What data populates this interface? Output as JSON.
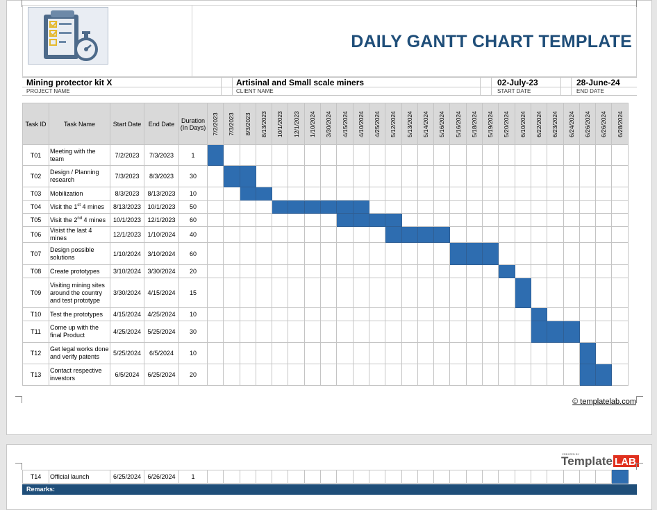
{
  "header": {
    "title": "DAILY GANTT CHART TEMPLATE",
    "logo_icon": "checklist-stopwatch-icon"
  },
  "project": {
    "name": "Mining protector kit X",
    "name_label": "PROJECT NAME",
    "client": "Artisinal and Small scale miners",
    "client_label": "CLIENT NAME",
    "start": "02-July-23",
    "start_label": "START DATE",
    "end": "28-June-24",
    "end_label": "END DATE"
  },
  "columns": {
    "task_id": "Task ID",
    "task_name": "Task Name",
    "start_date": "Start Date",
    "end_date": "End Date",
    "duration": "Duration (In Days)"
  },
  "timeline_dates": [
    "7/2/2023",
    "7/3/2023",
    "8/3/2023",
    "8/13/2023",
    "10/1/2023",
    "12/1/2023",
    "1/10/2024",
    "3/30/2024",
    "4/15/2024",
    "4/10/2024",
    "4/25/2024",
    "5/12/2024",
    "5/13/2024",
    "5/14/2024",
    "5/16/2024",
    "5/16/2024",
    "5/18/2024",
    "5/19/2024",
    "5/20/2024",
    "6/10/2024",
    "6/22/2024",
    "6/23/2024",
    "6/24/2024",
    "6/26/2024",
    "6/26/2024",
    "6/28/2024"
  ],
  "tasks": [
    {
      "id": "T01",
      "name": "Meeting with the\nteam",
      "start": "7/2/2023",
      "end": "7/3/2023",
      "duration": "1",
      "bar": [
        1,
        1
      ]
    },
    {
      "id": "T02",
      "name": "Design / Planning\nresearch",
      "start": "7/3/2023",
      "end": "8/3/2023",
      "duration": "30",
      "bar": [
        2,
        3
      ]
    },
    {
      "id": "T03",
      "name": "Mobilization",
      "start": "8/3/2023",
      "end": "8/13/2023",
      "duration": "10",
      "bar": [
        3,
        4
      ]
    },
    {
      "id": "T04",
      "name": "Visit the 1st 4 mines",
      "start": "8/13/2023",
      "end": "10/1/2023",
      "duration": "50",
      "bar": [
        5,
        10
      ]
    },
    {
      "id": "T05",
      "name": "Visit the 2nd 4 mines",
      "start": "10/1/2023",
      "end": "12/1/2023",
      "duration": "60",
      "bar": [
        9,
        12
      ]
    },
    {
      "id": "T06",
      "name": "Visist the last 4 mines",
      "start": "12/1/2023",
      "end": "1/10/2024",
      "duration": "40",
      "bar": [
        12,
        15
      ]
    },
    {
      "id": "T07",
      "name": "   Design possible\n   solutions",
      "start": "1/10/2024",
      "end": "3/10/2024",
      "duration": "60",
      "bar": [
        16,
        18
      ]
    },
    {
      "id": "T08",
      "name": "   Create  prototypes",
      "start": "3/10/2024",
      "end": "3/30/2024",
      "duration": "20",
      "bar": [
        19,
        19
      ]
    },
    {
      "id": "T09",
      "name": "Visiting mining sites\naround the country\nand test prototype",
      "start": "3/30/2024",
      "end": "4/15/2024",
      "duration": "15",
      "bar": [
        20,
        20
      ]
    },
    {
      "id": "T10",
      "name": "Test the prototypes",
      "start": "4/15/2024",
      "end": "4/25/2024",
      "duration": "10",
      "bar": [
        21,
        21
      ]
    },
    {
      "id": "T11",
      "name": "Come up with the\nfinal Product",
      "start": "4/25/2024",
      "end": "5/25/2024",
      "duration": "30",
      "bar": [
        21,
        23
      ]
    },
    {
      "id": "T12",
      "name": "Get legal works done\nand verify patents",
      "start": "5/25/2024",
      "end": "6/5/2024",
      "duration": "10",
      "bar": [
        24,
        24
      ]
    },
    {
      "id": "T13",
      "name": "Contact respective\ninvestors",
      "start": "6/5/2024",
      "end": "6/25/2024",
      "duration": "20",
      "bar": [
        24,
        25
      ]
    }
  ],
  "task14": {
    "id": "T14",
    "name": "   Official launch",
    "start": "6/25/2024",
    "end": "6/26/2024",
    "duration": "1",
    "bar": [
      26,
      26
    ]
  },
  "footer": {
    "credit": "© templatelab.com",
    "brand_small": "CREATED BY",
    "brand": "TemplateLAB",
    "remarks": "Remarks:"
  },
  "colors": {
    "bar": "#2e6db0",
    "title": "#1f4e79",
    "header_bg": "#d9d9d9"
  }
}
